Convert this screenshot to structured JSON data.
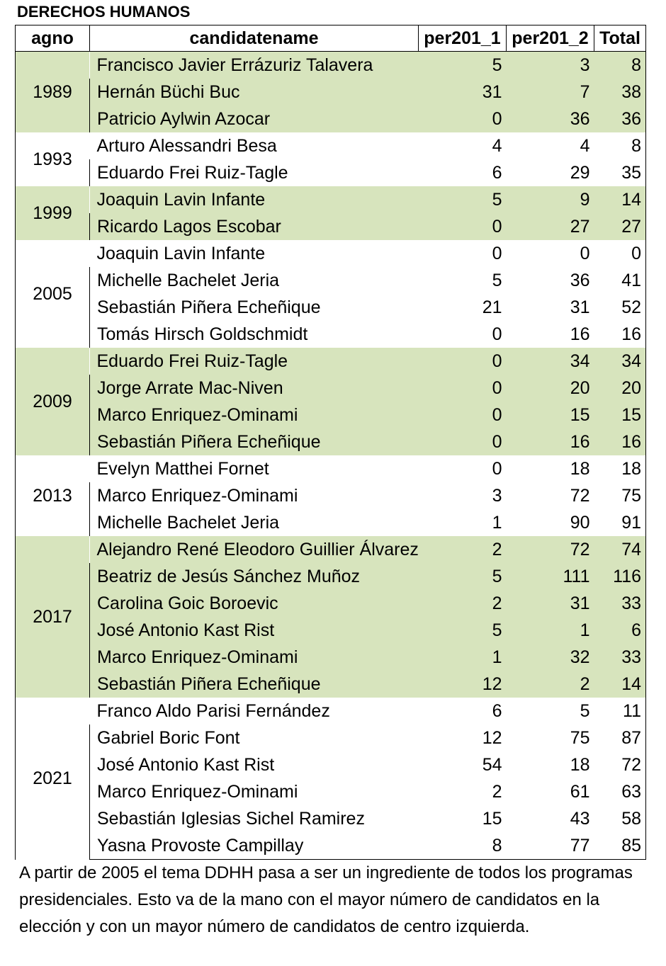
{
  "title": "DERECHOS HUMANOS",
  "headers": [
    "agno",
    "candidatename",
    "per201_1",
    "per201_2",
    "Total"
  ],
  "groups": [
    {
      "agno": "1989",
      "shade": true,
      "rows": [
        [
          "Francisco Javier Errázuriz Talavera",
          "5",
          "3",
          "8"
        ],
        [
          "Hernán Büchi Buc",
          "31",
          "7",
          "38"
        ],
        [
          "Patricio Aylwin Azocar",
          "0",
          "36",
          "36"
        ]
      ]
    },
    {
      "agno": "1993",
      "shade": false,
      "rows": [
        [
          "Arturo Alessandri Besa",
          "4",
          "4",
          "8"
        ],
        [
          "Eduardo Frei Ruiz-Tagle",
          "6",
          "29",
          "35"
        ]
      ]
    },
    {
      "agno": "1999",
      "shade": true,
      "rows": [
        [
          "Joaquin Lavin Infante",
          "5",
          "9",
          "14"
        ],
        [
          "Ricardo Lagos Escobar",
          "0",
          "27",
          "27"
        ]
      ]
    },
    {
      "agno": "2005",
      "shade": false,
      "rows": [
        [
          "Joaquin Lavin Infante",
          "0",
          "0",
          "0"
        ],
        [
          "Michelle Bachelet Jeria",
          "5",
          "36",
          "41"
        ],
        [
          "Sebastián Piñera Echeñique",
          "21",
          "31",
          "52"
        ],
        [
          "Tomás Hirsch Goldschmidt",
          "0",
          "16",
          "16"
        ]
      ]
    },
    {
      "agno": "2009",
      "shade": true,
      "rows": [
        [
          "Eduardo Frei Ruiz-Tagle",
          "0",
          "34",
          "34"
        ],
        [
          "Jorge Arrate Mac-Niven",
          "0",
          "20",
          "20"
        ],
        [
          "Marco Enriquez-Ominami",
          "0",
          "15",
          "15"
        ],
        [
          "Sebastián Piñera Echeñique",
          "0",
          "16",
          "16"
        ]
      ]
    },
    {
      "agno": "2013",
      "shade": false,
      "rows": [
        [
          "Evelyn Matthei Fornet",
          "0",
          "18",
          "18"
        ],
        [
          "Marco Enriquez-Ominami",
          "3",
          "72",
          "75"
        ],
        [
          "Michelle Bachelet Jeria",
          "1",
          "90",
          "91"
        ]
      ]
    },
    {
      "agno": "2017",
      "shade": true,
      "rows": [
        [
          "Alejandro René Eleodoro Guillier Álvarez",
          "2",
          "72",
          "74"
        ],
        [
          "Beatriz de Jesús Sánchez Muñoz",
          "5",
          "111",
          "116"
        ],
        [
          "Carolina Goic Boroevic",
          "2",
          "31",
          "33"
        ],
        [
          "José Antonio Kast Rist",
          "5",
          "1",
          "6"
        ],
        [
          "Marco Enriquez-Ominami",
          "1",
          "32",
          "33"
        ],
        [
          "Sebastián Piñera Echeñique",
          "12",
          "2",
          "14"
        ]
      ]
    },
    {
      "agno": "2021",
      "shade": false,
      "rows": [
        [
          "Franco Aldo Parisi Fernández",
          "6",
          "5",
          "11"
        ],
        [
          "Gabriel Boric Font",
          "12",
          "75",
          "87"
        ],
        [
          "José Antonio Kast Rist",
          "54",
          "18",
          "72"
        ],
        [
          "Marco Enriquez-Ominami",
          "2",
          "61",
          "63"
        ],
        [
          "Sebastián Iglesias Sichel Ramirez",
          "15",
          "43",
          "58"
        ],
        [
          "Yasna Provoste Campillay",
          "8",
          "77",
          "85"
        ]
      ]
    }
  ],
  "note": "A partir de 2005 el tema DDHH pasa a ser un ingrediente de todos los programas presidenciales. Esto va de la mano con el mayor número de candidatos en la elección y con un mayor número de candidatos de centro izquierda.",
  "colors": {
    "shade": "#d7e4bd",
    "border": "#000000"
  }
}
